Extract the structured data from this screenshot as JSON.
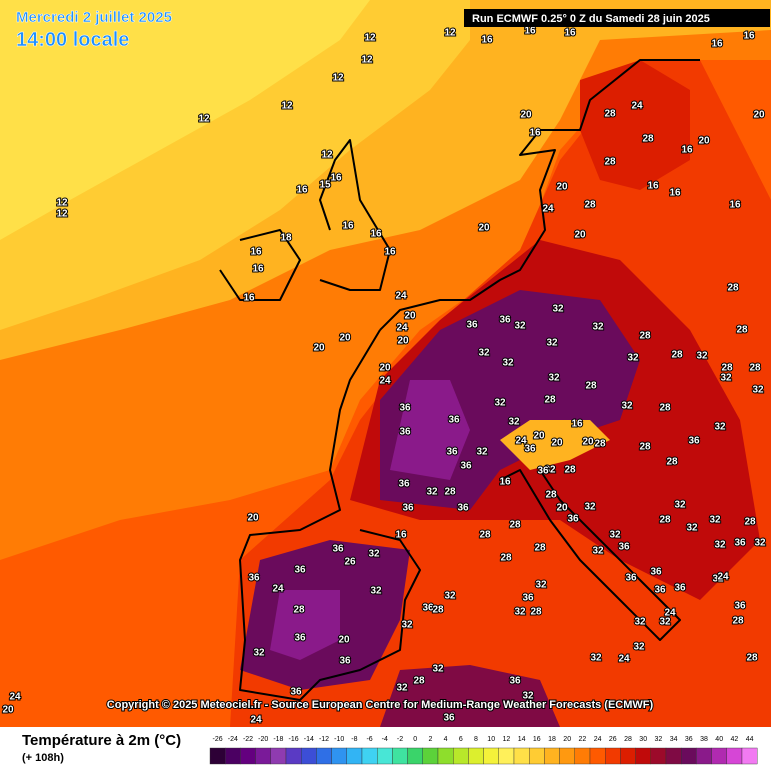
{
  "header": {
    "date": "Mercredi 2 juillet 2025",
    "time": "14:00 locale",
    "run": "Run ECMWF 0.25° 0 Z du Samedi 28 juin 2025"
  },
  "copyright": "Copyright © 2025 Meteociel.fr - Source European Centre for Medium-Range Weather Forecasts (ECMWF)",
  "legend": {
    "title": "Température à 2m (°C)",
    "lead": "(+ 108h)",
    "ticks": [
      -26,
      -24,
      -22,
      -20,
      -18,
      -16,
      -14,
      -12,
      -10,
      -8,
      -6,
      -4,
      -2,
      0,
      2,
      4,
      6,
      8,
      10,
      12,
      14,
      16,
      18,
      20,
      22,
      24,
      26,
      28,
      30,
      32,
      34,
      36,
      38,
      40,
      42,
      44
    ],
    "colors": [
      "#2d0036",
      "#4b0062",
      "#64007f",
      "#7a1a99",
      "#8f3bb0",
      "#5a3ac4",
      "#3c4ed6",
      "#2f6fe6",
      "#2f93f0",
      "#32b4f4",
      "#3fd2f2",
      "#48e6d6",
      "#3fe3a0",
      "#3ad46a",
      "#5cd23a",
      "#8ede2c",
      "#b8e82a",
      "#dcef2e",
      "#f4f23a",
      "#fff05a",
      "#ffe048",
      "#ffcc33",
      "#ffb320",
      "#ff9910",
      "#ff7c05",
      "#ff5a00",
      "#f23a00",
      "#dc1e00",
      "#c00a0a",
      "#9c0a2a",
      "#7f0a44",
      "#6a0b5c",
      "#8a1a8a",
      "#b02ab0",
      "#d646d6",
      "#f27af2"
    ]
  },
  "map": {
    "labels": [
      12,
      16,
      16,
      16,
      16,
      16,
      12,
      12,
      12,
      12,
      12,
      12,
      16,
      16,
      15,
      12,
      12,
      16,
      16,
      16,
      16,
      16,
      18,
      16,
      20,
      20,
      16,
      24,
      28,
      28,
      28,
      16,
      20,
      16,
      16,
      16,
      20,
      20,
      24,
      28,
      20,
      28,
      28,
      24,
      20,
      24,
      20,
      20,
      20,
      20,
      24,
      36,
      36,
      32,
      32,
      32,
      32,
      32,
      32,
      32,
      28,
      32,
      28,
      32,
      28,
      32,
      28,
      32,
      36,
      36,
      36,
      32,
      32,
      28,
      28,
      32,
      28,
      32,
      36,
      36,
      36,
      32,
      36,
      32,
      28,
      36,
      36,
      28,
      28,
      28,
      36,
      32,
      32,
      28,
      28,
      28,
      28,
      32,
      28,
      32,
      32,
      28,
      32,
      36,
      32,
      32,
      36,
      32,
      36,
      26,
      32,
      36,
      36,
      24,
      32,
      28,
      36,
      36,
      28,
      32,
      28,
      28,
      32,
      36,
      32,
      28,
      36,
      36,
      36,
      36,
      24,
      32,
      32,
      32,
      24,
      36,
      32,
      20,
      32,
      36,
      32,
      24,
      32,
      28,
      28,
      32,
      28,
      32,
      36,
      36,
      32,
      36,
      24,
      24,
      20,
      20,
      16,
      24,
      20,
      20,
      16,
      20,
      16,
      20,
      36,
      36,
      28
    ]
  }
}
